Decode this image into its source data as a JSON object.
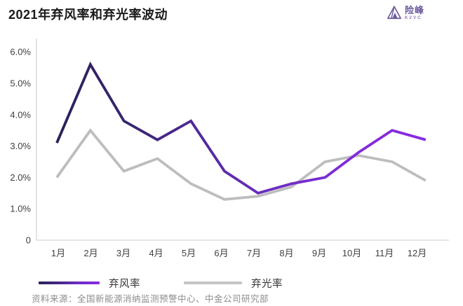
{
  "header": {
    "title": "2021年弃风率和弃光率波动",
    "logo": {
      "name": "险峰",
      "subtext": "K2VC"
    }
  },
  "chart_data": {
    "type": "line",
    "title": "2021年弃风率和弃光率波动",
    "categories": [
      "1月",
      "2月",
      "3月",
      "4月",
      "5月",
      "6月",
      "7月",
      "8月",
      "9月",
      "10月",
      "11月",
      "12月"
    ],
    "series": [
      {
        "name": "弃风率",
        "values": [
          3.1,
          5.6,
          3.8,
          3.2,
          3.8,
          2.2,
          1.5,
          1.8,
          2.0,
          2.8,
          3.5,
          3.2
        ],
        "color": "purple-gradient"
      },
      {
        "name": "弃光率",
        "values": [
          2.0,
          3.5,
          2.2,
          2.6,
          1.8,
          1.3,
          1.4,
          1.7,
          2.5,
          2.7,
          2.5,
          1.9
        ],
        "color": "#bdbdbd"
      }
    ],
    "yticks": [
      {
        "label": "6.0%",
        "value": 6
      },
      {
        "label": "5.0%",
        "value": 5
      },
      {
        "label": "4.0%",
        "value": 4
      },
      {
        "label": "3.0%",
        "value": 3
      },
      {
        "label": "2.0%",
        "value": 2
      },
      {
        "label": "1.0%",
        "value": 1
      },
      {
        "label": "0",
        "value": 0
      }
    ],
    "ylim": [
      0,
      6.43
    ],
    "xlabel": "",
    "ylabel": "",
    "grid": false,
    "legend_position": "bottom"
  },
  "legend": {
    "items": [
      {
        "label": "弃风率",
        "swatch": "purple-gradient"
      },
      {
        "label": "弃光率",
        "swatch": "gray"
      }
    ]
  },
  "footer": {
    "source": "资料来源：全国新能源消纳监测预警中心、中金公司研究部"
  },
  "colors": {
    "wind_line_start": "#2d2058",
    "wind_line_mid": "#5f2cae",
    "wind_line_end": "#8b2ae2",
    "solar_line": "#bdbdbd",
    "axis": "#d6d6d6",
    "tick_text": "#404040",
    "title_text": "#1a1a1a",
    "source_text": "#8c8c8c",
    "logo": "#6f5b9e"
  }
}
